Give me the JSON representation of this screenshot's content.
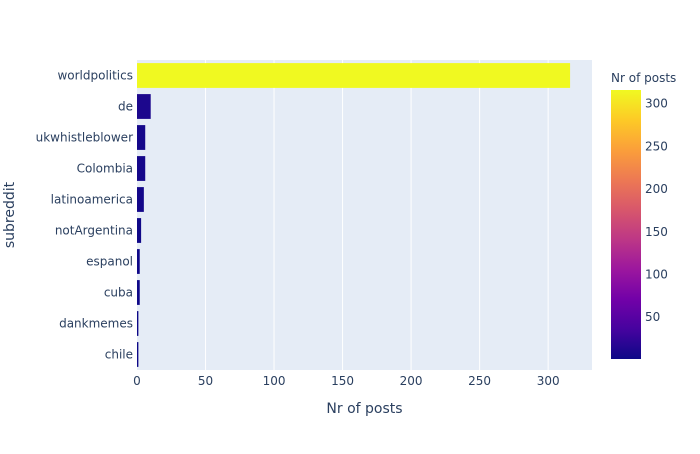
{
  "chart_data": {
    "type": "bar",
    "orientation": "horizontal",
    "categories": [
      "worldpolitics",
      "de",
      "ukwhistleblower",
      "Colombia",
      "latinoamerica",
      "notArgentina",
      "espanol",
      "cuba",
      "dankmemes",
      "chile"
    ],
    "values": [
      316,
      10,
      6,
      6,
      5,
      3,
      2,
      2,
      1,
      1
    ],
    "xlabel": "Nr of posts",
    "ylabel": "subreddit",
    "xlim": [
      0,
      332
    ],
    "xticks": [
      0,
      50,
      100,
      150,
      200,
      250,
      300
    ],
    "grid": true,
    "colorbar": {
      "title": "Nr of posts",
      "range": [
        1,
        316
      ],
      "ticks": [
        50,
        100,
        150,
        200,
        250,
        300
      ],
      "colorscale": [
        "#0d0887",
        "#46039f",
        "#7201a8",
        "#9c179e",
        "#bd3786",
        "#d8576b",
        "#ed7953",
        "#fb9f3a",
        "#fdca26",
        "#f0f921"
      ]
    },
    "colors": {
      "plot_bg": "#e5ecf6",
      "grid": "#ffffff",
      "text": "#2a3f5f"
    }
  }
}
